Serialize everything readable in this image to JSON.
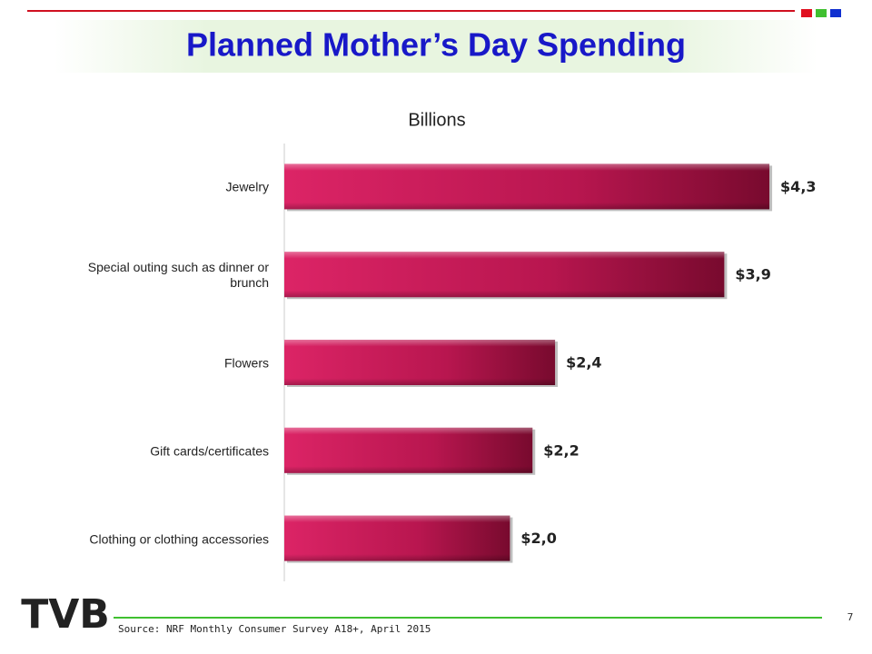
{
  "chart_data": {
    "type": "bar",
    "orientation": "horizontal",
    "title": "Planned Mother’s Day Spending",
    "subtitle": "Billions",
    "categories": [
      "Jewelry",
      "Special outing such as dinner or brunch",
      "Flowers",
      "Gift cards/certificates",
      "Clothing or clothing accessories"
    ],
    "values": [
      4.3,
      3.9,
      2.4,
      2.2,
      2.0
    ],
    "value_labels": [
      "$4,3",
      "$3,9",
      "$2,4",
      "$2,2",
      "$2,0"
    ],
    "color": "#c0185a",
    "xlim": [
      0,
      5
    ]
  },
  "footer": {
    "logo": "TVB",
    "source": "Source: NRF Monthly Consumer Survey A18+, April 2015",
    "page_number": "7"
  }
}
